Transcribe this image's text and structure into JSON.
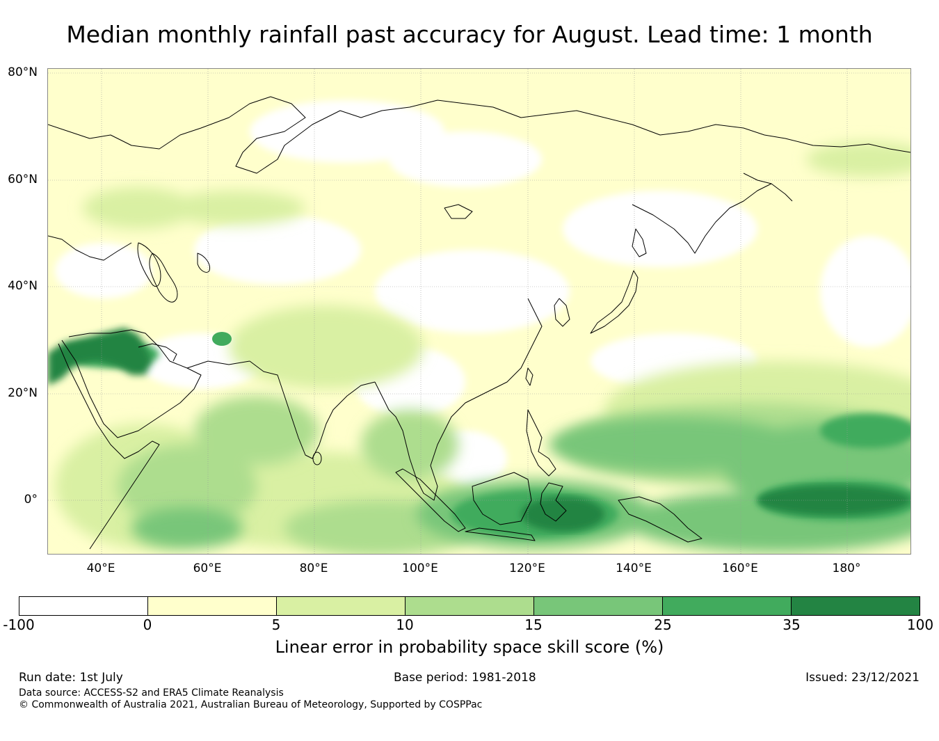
{
  "title": "Median monthly rainfall past accuracy for August. Lead time: 1 month",
  "map": {
    "lat_labels": [
      "80°N",
      "60°N",
      "40°N",
      "20°N",
      "0°"
    ],
    "lon_labels": [
      "40°E",
      "60°E",
      "80°E",
      "100°E",
      "120°E",
      "140°E",
      "160°E",
      "180°"
    ],
    "colors": [
      "#ffffff",
      "#ffffcc",
      "#d9f0a3",
      "#addd8e",
      "#78c679",
      "#41ab5d",
      "#238443"
    ]
  },
  "colorbar": {
    "ticks": [
      "-100",
      "0",
      "5",
      "10",
      "15",
      "25",
      "35",
      "100"
    ],
    "label": "Linear error in probability space skill score (%)"
  },
  "footer": {
    "run_date": "Run date: 1st July",
    "base_period": "Base period: 1981-2018",
    "issued": "Issued: 23/12/2021",
    "data_source": "Data source: ACCESS-S2 and ERA5 Climate Reanalysis",
    "copyright": "© Commonwealth of Australia 2021, Australian Bureau of Meteorology, Supported by COSPPac"
  }
}
